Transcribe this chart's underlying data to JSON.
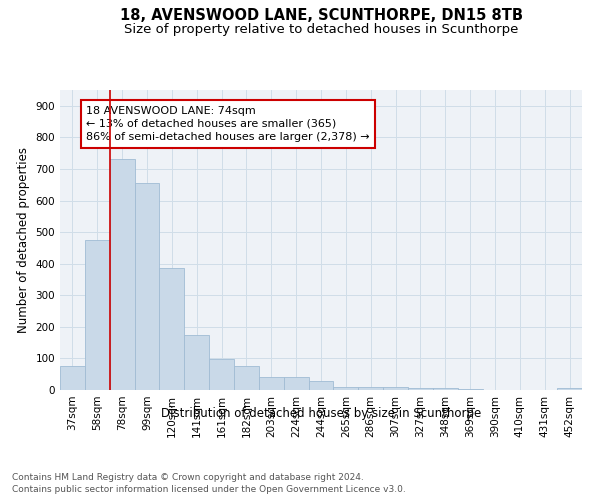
{
  "title": "18, AVENSWOOD LANE, SCUNTHORPE, DN15 8TB",
  "subtitle": "Size of property relative to detached houses in Scunthorpe",
  "xlabel": "Distribution of detached houses by size in Scunthorpe",
  "ylabel": "Number of detached properties",
  "bar_labels": [
    "37sqm",
    "58sqm",
    "78sqm",
    "99sqm",
    "120sqm",
    "141sqm",
    "161sqm",
    "182sqm",
    "203sqm",
    "224sqm",
    "244sqm",
    "265sqm",
    "286sqm",
    "307sqm",
    "327sqm",
    "348sqm",
    "369sqm",
    "390sqm",
    "410sqm",
    "431sqm",
    "452sqm"
  ],
  "bar_values": [
    75,
    475,
    730,
    657,
    385,
    175,
    97,
    77,
    42,
    40,
    27,
    10,
    10,
    8,
    5,
    5,
    2,
    0,
    0,
    0,
    7
  ],
  "bar_color": "#c9d9e8",
  "bar_edge_color": "#a0bcd4",
  "ylim": [
    0,
    950
  ],
  "yticks": [
    0,
    100,
    200,
    300,
    400,
    500,
    600,
    700,
    800,
    900
  ],
  "vline_x": 1.5,
  "vline_color": "#cc0000",
  "annotation_text": "18 AVENSWOOD LANE: 74sqm\n← 13% of detached houses are smaller (365)\n86% of semi-detached houses are larger (2,378) →",
  "grid_color": "#d0dde8",
  "background_color": "#eef2f7",
  "footnote1": "Contains HM Land Registry data © Crown copyright and database right 2024.",
  "footnote2": "Contains public sector information licensed under the Open Government Licence v3.0.",
  "title_fontsize": 10.5,
  "subtitle_fontsize": 9.5,
  "axis_label_fontsize": 8.5,
  "tick_fontsize": 7.5,
  "annot_fontsize": 8
}
